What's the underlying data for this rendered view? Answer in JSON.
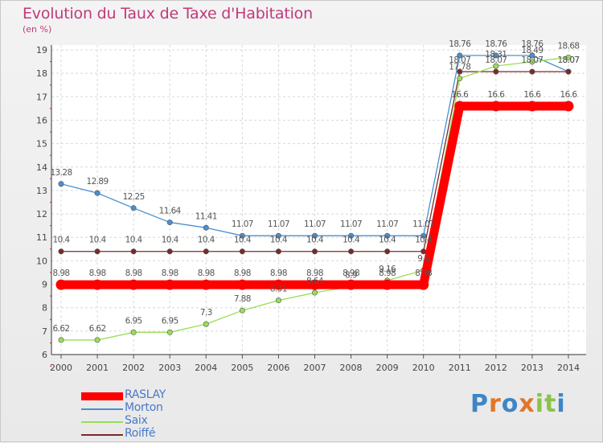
{
  "header": {
    "title": "Evolution du Taux de Taxe d'Habitation",
    "unit": "(en %)"
  },
  "brand": {
    "letters": [
      "P",
      "r",
      "o",
      "x",
      "i",
      "t",
      "i"
    ],
    "colors": [
      "#3d86c6",
      "#e2762a",
      "#3d86c6",
      "#e2762a",
      "#8bc34a",
      "#8bc34a",
      "#3d86c6"
    ]
  },
  "chart_data": {
    "type": "line",
    "title": "Evolution du Taux de Taxe d'Habitation",
    "ylabel": "(en %)",
    "xlabel": "",
    "x": [
      "2000",
      "2001",
      "2002",
      "2003",
      "2004",
      "2005",
      "2006",
      "2007",
      "2008",
      "2009",
      "2010",
      "2011",
      "2012",
      "2013",
      "2014"
    ],
    "yticks": [
      "6",
      "7",
      "8",
      "9",
      "10",
      "11",
      "12",
      "13",
      "14",
      "15",
      "16",
      "17",
      "18",
      "19"
    ],
    "ylim": [
      6,
      19
    ],
    "grid": true,
    "legend_position": "bottom-left",
    "series": [
      {
        "name": "RASLAY",
        "color": "#ff0000",
        "values": [
          8.98,
          8.98,
          8.98,
          8.98,
          8.98,
          8.98,
          8.98,
          8.98,
          8.98,
          8.98,
          8.98,
          16.6,
          16.6,
          16.6,
          16.6
        ],
        "labels": [
          "8.98",
          "8.98",
          "8.98",
          "8.98",
          "8.98",
          "8.98",
          "8.98",
          "8.98",
          "8.98",
          "8.98",
          "8.98",
          "16.6",
          "16.6",
          "16.6",
          "16.6"
        ]
      },
      {
        "name": "Morton",
        "color": "#4a8fd0",
        "values": [
          13.28,
          12.89,
          12.25,
          11.64,
          11.41,
          11.07,
          11.07,
          11.07,
          11.07,
          11.07,
          11.07,
          18.76,
          18.76,
          18.76,
          18.07
        ],
        "labels": [
          "13.28",
          "12.89",
          "12.25",
          "11.64",
          "11.41",
          "11.07",
          "11.07",
          "11.07",
          "11.07",
          "11.07",
          "11.07",
          "18.76",
          "18.76",
          "18.76",
          "18.07"
        ]
      },
      {
        "name": "Saix",
        "color": "#99dd55",
        "values": [
          6.62,
          6.62,
          6.95,
          6.95,
          7.3,
          7.88,
          8.31,
          8.64,
          8.9,
          9.16,
          9.6,
          17.78,
          18.31,
          18.49,
          18.68
        ],
        "labels": [
          "6.62",
          "6.62",
          "6.95",
          "6.95",
          "7.3",
          "7.88",
          "8.31",
          "8.64",
          "8.9",
          "9.16",
          "9.6",
          "17.78",
          "18.31",
          "18.49",
          "18.68"
        ]
      },
      {
        "name": "Roiffé",
        "color": "#7a2a2a",
        "values": [
          10.4,
          10.4,
          10.4,
          10.4,
          10.4,
          10.4,
          10.4,
          10.4,
          10.4,
          10.4,
          10.4,
          18.07,
          18.07,
          18.07,
          18.07
        ],
        "labels": [
          "10.4",
          "10.4",
          "10.4",
          "10.4",
          "10.4",
          "10.4",
          "10.4",
          "10.4",
          "10.4",
          "10.4",
          "10.4",
          "18.07",
          "18.07",
          "18.07",
          "18.07"
        ]
      }
    ]
  }
}
